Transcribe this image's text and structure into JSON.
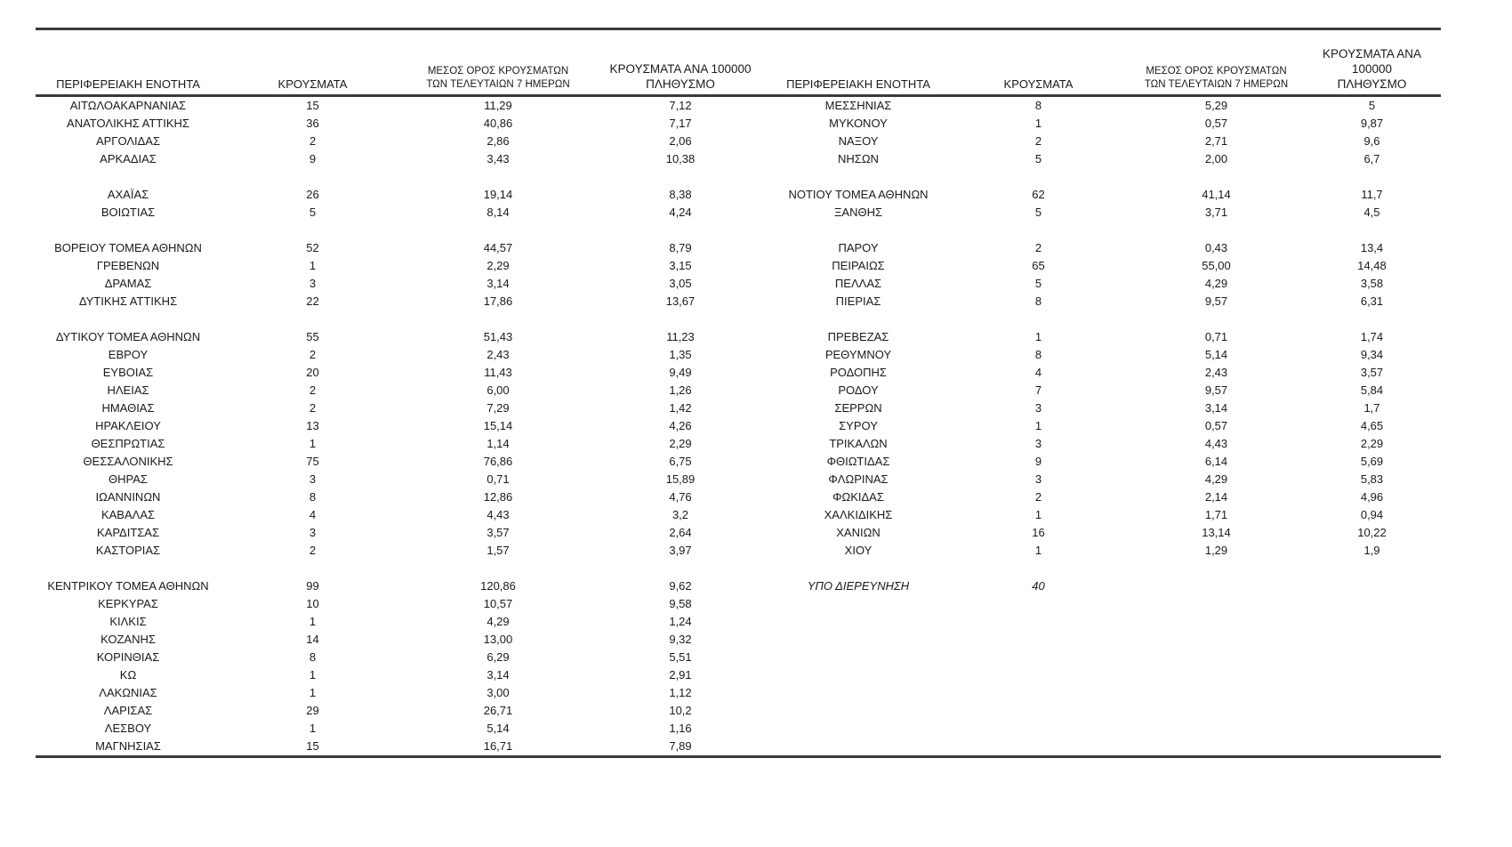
{
  "colors": {
    "text": "#1a1a1a",
    "rule": "#3a3a3a"
  },
  "table": {
    "headers": {
      "region": "ΠΕΡΙΦΕΡΕΙΑΚΗ ΕΝΟΤΗΤΑ",
      "cases": "ΚΡΟΥΣΜΑΤΑ",
      "avg7_line1": "ΜΕΣΟΣ ΟΡΟΣ ΚΡΟΥΣΜΑΤΩΝ",
      "avg7_line2": "ΤΩΝ ΤΕΛΕΥΤΑΙΩΝ 7 ΗΜΕΡΩΝ",
      "per100k_line1": "ΚΡΟΥΣΜΑΤΑ ΑΝΑ 100000",
      "per100k_line2": "ΠΛΗΘΥΣΜΟ"
    },
    "rows": [
      {
        "l": [
          "ΑΙΤΩΛΟΑΚΑΡΝΑΝΙΑΣ",
          "15",
          "11,29",
          "7,12"
        ],
        "r": [
          "ΜΕΣΣΗΝΙΑΣ",
          "8",
          "5,29",
          "5"
        ]
      },
      {
        "l": [
          "ΑΝΑΤΟΛΙΚΗΣ ΑΤΤΙΚΗΣ",
          "36",
          "40,86",
          "7,17"
        ],
        "r": [
          "ΜΥΚΟΝΟΥ",
          "1",
          "0,57",
          "9,87"
        ]
      },
      {
        "l": [
          "ΑΡΓΟΛΙΔΑΣ",
          "2",
          "2,86",
          "2,06"
        ],
        "r": [
          "ΝΑΞΟΥ",
          "2",
          "2,71",
          "9,6"
        ]
      },
      {
        "l": [
          "ΑΡΚΑΔΙΑΣ",
          "9",
          "3,43",
          "10,38"
        ],
        "r": [
          "ΝΗΣΩΝ",
          "5",
          "2,00",
          "6,7"
        ]
      },
      {
        "blank": true
      },
      {
        "l": [
          "ΑΧΑΪΑΣ",
          "26",
          "19,14",
          "8,38"
        ],
        "r": [
          "ΝΟΤΙΟΥ ΤΟΜΕΑ ΑΘΗΝΩΝ",
          "62",
          "41,14",
          "11,7"
        ]
      },
      {
        "l": [
          "ΒΟΙΩΤΙΑΣ",
          "5",
          "8,14",
          "4,24"
        ],
        "r": [
          "ΞΑΝΘΗΣ",
          "5",
          "3,71",
          "4,5"
        ]
      },
      {
        "blank": true
      },
      {
        "l": [
          "ΒΟΡΕΙΟΥ ΤΟΜΕΑ ΑΘΗΝΩΝ",
          "52",
          "44,57",
          "8,79"
        ],
        "r": [
          "ΠΑΡΟΥ",
          "2",
          "0,43",
          "13,4"
        ]
      },
      {
        "l": [
          "ΓΡΕΒΕΝΩΝ",
          "1",
          "2,29",
          "3,15"
        ],
        "r": [
          "ΠΕΙΡΑΙΩΣ",
          "65",
          "55,00",
          "14,48"
        ]
      },
      {
        "l": [
          "ΔΡΑΜΑΣ",
          "3",
          "3,14",
          "3,05"
        ],
        "r": [
          "ΠΕΛΛΑΣ",
          "5",
          "4,29",
          "3,58"
        ]
      },
      {
        "l": [
          "ΔΥΤΙΚΗΣ ΑΤΤΙΚΗΣ",
          "22",
          "17,86",
          "13,67"
        ],
        "r": [
          "ΠΙΕΡΙΑΣ",
          "8",
          "9,57",
          "6,31"
        ]
      },
      {
        "blank": true
      },
      {
        "l": [
          "ΔΥΤΙΚΟΥ ΤΟΜΕΑ ΑΘΗΝΩΝ",
          "55",
          "51,43",
          "11,23"
        ],
        "r": [
          "ΠΡΕΒΕΖΑΣ",
          "1",
          "0,71",
          "1,74"
        ]
      },
      {
        "l": [
          "ΕΒΡΟΥ",
          "2",
          "2,43",
          "1,35"
        ],
        "r": [
          "ΡΕΘΥΜΝΟΥ",
          "8",
          "5,14",
          "9,34"
        ]
      },
      {
        "l": [
          "ΕΥΒΟΙΑΣ",
          "20",
          "11,43",
          "9,49"
        ],
        "r": [
          "ΡΟΔΟΠΗΣ",
          "4",
          "2,43",
          "3,57"
        ]
      },
      {
        "l": [
          "ΗΛΕΙΑΣ",
          "2",
          "6,00",
          "1,26"
        ],
        "r": [
          "ΡΟΔΟΥ",
          "7",
          "9,57",
          "5,84"
        ]
      },
      {
        "l": [
          "ΗΜΑΘΙΑΣ",
          "2",
          "7,29",
          "1,42"
        ],
        "r": [
          "ΣΕΡΡΩΝ",
          "3",
          "3,14",
          "1,7"
        ]
      },
      {
        "l": [
          "ΗΡΑΚΛΕΙΟΥ",
          "13",
          "15,14",
          "4,26"
        ],
        "r": [
          "ΣΥΡΟΥ",
          "1",
          "0,57",
          "4,65"
        ]
      },
      {
        "l": [
          "ΘΕΣΠΡΩΤΙΑΣ",
          "1",
          "1,14",
          "2,29"
        ],
        "r": [
          "ΤΡΙΚΑΛΩΝ",
          "3",
          "4,43",
          "2,29"
        ]
      },
      {
        "l": [
          "ΘΕΣΣΑΛΟΝΙΚΗΣ",
          "75",
          "76,86",
          "6,75"
        ],
        "r": [
          "ΦΘΙΩΤΙΔΑΣ",
          "9",
          "6,14",
          "5,69"
        ]
      },
      {
        "l": [
          "ΘΗΡΑΣ",
          "3",
          "0,71",
          "15,89"
        ],
        "r": [
          "ΦΛΩΡΙΝΑΣ",
          "3",
          "4,29",
          "5,83"
        ]
      },
      {
        "l": [
          "ΙΩΑΝΝΙΝΩΝ",
          "8",
          "12,86",
          "4,76"
        ],
        "r": [
          "ΦΩΚΙΔΑΣ",
          "2",
          "2,14",
          "4,96"
        ]
      },
      {
        "l": [
          "ΚΑΒΑΛΑΣ",
          "4",
          "4,43",
          "3,2"
        ],
        "r": [
          "ΧΑΛΚΙΔΙΚΗΣ",
          "1",
          "1,71",
          "0,94"
        ]
      },
      {
        "l": [
          "ΚΑΡΔΙΤΣΑΣ",
          "3",
          "3,57",
          "2,64"
        ],
        "r": [
          "ΧΑΝΙΩΝ",
          "16",
          "13,14",
          "10,22"
        ]
      },
      {
        "l": [
          "ΚΑΣΤΟΡΙΑΣ",
          "2",
          "1,57",
          "3,97"
        ],
        "r": [
          "ΧΙΟΥ",
          "1",
          "1,29",
          "1,9"
        ]
      },
      {
        "blank": true
      },
      {
        "l": [
          "ΚΕΝΤΡΙΚΟΥ ΤΟΜΕΑ ΑΘΗΝΩΝ",
          "99",
          "120,86",
          "9,62"
        ],
        "r": [
          "ΥΠΟ ΔΙΕΡΕΥΝΗΣΗ",
          "40",
          "",
          ""
        ],
        "r_italic": true
      },
      {
        "l": [
          "ΚΕΡΚΥΡΑΣ",
          "10",
          "10,57",
          "9,58"
        ]
      },
      {
        "l": [
          "ΚΙΛΚΙΣ",
          "1",
          "4,29",
          "1,24"
        ]
      },
      {
        "l": [
          "ΚΟΖΑΝΗΣ",
          "14",
          "13,00",
          "9,32"
        ]
      },
      {
        "l": [
          "ΚΟΡΙΝΘΙΑΣ",
          "8",
          "6,29",
          "5,51"
        ]
      },
      {
        "l": [
          "ΚΩ",
          "1",
          "3,14",
          "2,91"
        ]
      },
      {
        "l": [
          "ΛΑΚΩΝΙΑΣ",
          "1",
          "3,00",
          "1,12"
        ]
      },
      {
        "l": [
          "ΛΑΡΙΣΑΣ",
          "29",
          "26,71",
          "10,2"
        ]
      },
      {
        "l": [
          "ΛΕΣΒΟΥ",
          "1",
          "5,14",
          "1,16"
        ]
      },
      {
        "l": [
          "ΜΑΓΝΗΣΙΑΣ",
          "15",
          "16,71",
          "7,89"
        ]
      }
    ]
  }
}
